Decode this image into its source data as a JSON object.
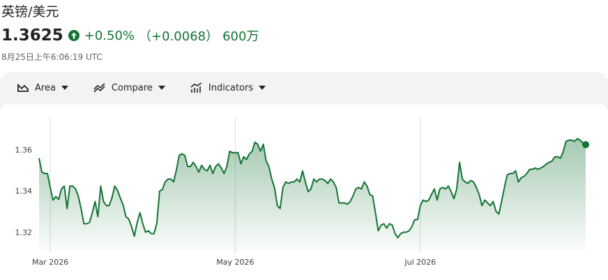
{
  "header": {
    "title": "英镑/美元",
    "price": "1.3625",
    "change_percent": "+0.50%",
    "change_value": "（+0.0068）",
    "volume": "600万",
    "timestamp": "8月25日上午6:06:19 UTC"
  },
  "toolbar": {
    "items": [
      "Area",
      "Compare",
      "Indicators"
    ]
  },
  "chart_data": {
    "type": "area",
    "color": "#137333",
    "categories": [
      null,
      null,
      null,
      null,
      "Mar 2026",
      null,
      null,
      null,
      null,
      null,
      null,
      null,
      null,
      null,
      null,
      null,
      null,
      null,
      null,
      null,
      null,
      null,
      null,
      null,
      null,
      null,
      null,
      null,
      null,
      null,
      null,
      null,
      null,
      null,
      null,
      null,
      null,
      null,
      null,
      null,
      null,
      null,
      null,
      null,
      null,
      null,
      null,
      null,
      null,
      null,
      null,
      null,
      null,
      null,
      null,
      null,
      null,
      null,
      null,
      null,
      null,
      null,
      null,
      null,
      null,
      null,
      null,
      null,
      null,
      null,
      "May 2026",
      null,
      null,
      null,
      null,
      null,
      null,
      null,
      null,
      null,
      null,
      null,
      null,
      null,
      null,
      null,
      null,
      null,
      null,
      null,
      null,
      null,
      null,
      null,
      null,
      null,
      null,
      null,
      null,
      null,
      null,
      null,
      null,
      null,
      null,
      null,
      null,
      null,
      null,
      null,
      null,
      null,
      null,
      null,
      null,
      null,
      null,
      null,
      null,
      null,
      null,
      null,
      null,
      null,
      null,
      null,
      null,
      null,
      null,
      null,
      null,
      null,
      null,
      null,
      null,
      null,
      "Jul 2026",
      null,
      null,
      null,
      null,
      null,
      null,
      null,
      null,
      null,
      null,
      null,
      null,
      null,
      null,
      null,
      null,
      null,
      null,
      null,
      null,
      null,
      null,
      null,
      null,
      null,
      null,
      null,
      null,
      null,
      null,
      null,
      null,
      null,
      null,
      null,
      null,
      null,
      null,
      null,
      null,
      null,
      null,
      null,
      null,
      null,
      null,
      null,
      null,
      null,
      null,
      null,
      null,
      null,
      null,
      null,
      null,
      null,
      null,
      null
    ],
    "values": [
      1.3559,
      1.3492,
      1.3485,
      1.3485,
      1.3417,
      1.3356,
      1.3373,
      1.3359,
      1.341,
      1.3424,
      1.3315,
      1.3424,
      1.3424,
      1.341,
      1.3376,
      1.3315,
      1.3241,
      1.3241,
      1.3247,
      1.3295,
      1.3349,
      1.3275,
      1.3424,
      1.3349,
      1.3329,
      1.3329,
      1.3366,
      1.3424,
      1.3403,
      1.3366,
      1.3332,
      1.3275,
      1.3264,
      1.3227,
      1.318,
      1.3247,
      1.3295,
      1.3241,
      1.32,
      1.3207,
      1.3193,
      1.3193,
      1.3241,
      1.34,
      1.3407,
      1.3444,
      1.3458,
      1.3458,
      1.3444,
      1.3502,
      1.3573,
      1.358,
      1.3573,
      1.3519,
      1.3519,
      1.3539,
      1.3519,
      1.3492,
      1.3525,
      1.3505,
      1.3498,
      1.3525,
      1.3485,
      1.3519,
      1.3532,
      1.3512,
      1.3485,
      1.3519,
      1.3593,
      1.3586,
      1.3586,
      1.3586,
      1.3532,
      1.3566,
      1.3553,
      1.358,
      1.3593,
      1.3637,
      1.3627,
      1.3593,
      1.3627,
      1.3546,
      1.3519,
      1.3458,
      1.3417,
      1.3329,
      1.3315,
      1.3417,
      1.3444,
      1.3437,
      1.3444,
      1.3444,
      1.3458,
      1.3444,
      1.3498,
      1.3444,
      1.3397,
      1.341,
      1.3458,
      1.3444,
      1.3458,
      1.3458,
      1.3451,
      1.3437,
      1.3458,
      1.3444,
      1.3417,
      1.3342,
      1.3342,
      1.3342,
      1.3336,
      1.3349,
      1.3376,
      1.341,
      1.3417,
      1.341,
      1.3444,
      1.3424,
      1.3383,
      1.3376,
      1.3295,
      1.3207,
      1.3234,
      1.3241,
      1.322,
      1.3241,
      1.3234,
      1.3193,
      1.3173,
      1.3193,
      1.32,
      1.32,
      1.3207,
      1.3227,
      1.3261,
      1.3261,
      1.3329,
      1.3356,
      1.3349,
      1.3356,
      1.3383,
      1.341,
      1.3356,
      1.341,
      1.3417,
      1.341,
      1.3424,
      1.3397,
      1.3363,
      1.341,
      1.3539,
      1.3458,
      1.3444,
      1.3437,
      1.3451,
      1.3444,
      1.3417,
      1.3383,
      1.3329,
      1.3356,
      1.3342,
      1.3329,
      1.3349,
      1.3302,
      1.3288,
      1.3349,
      1.3417,
      1.3478,
      1.3485,
      1.3485,
      1.3498,
      1.3444,
      1.3464,
      1.3471,
      1.3485,
      1.3505,
      1.3505,
      1.3512,
      1.3505,
      1.3512,
      1.3519,
      1.3532,
      1.3539,
      1.3546,
      1.3566,
      1.3566,
      1.3559,
      1.3593,
      1.3641,
      1.3647,
      1.3647,
      1.3641,
      1.3654,
      1.3647,
      1.3634,
      1.3625
    ],
    "ylim": [
      1.311,
      1.382
    ],
    "yticks": [
      1.32,
      1.34,
      1.36
    ],
    "grid": true
  }
}
